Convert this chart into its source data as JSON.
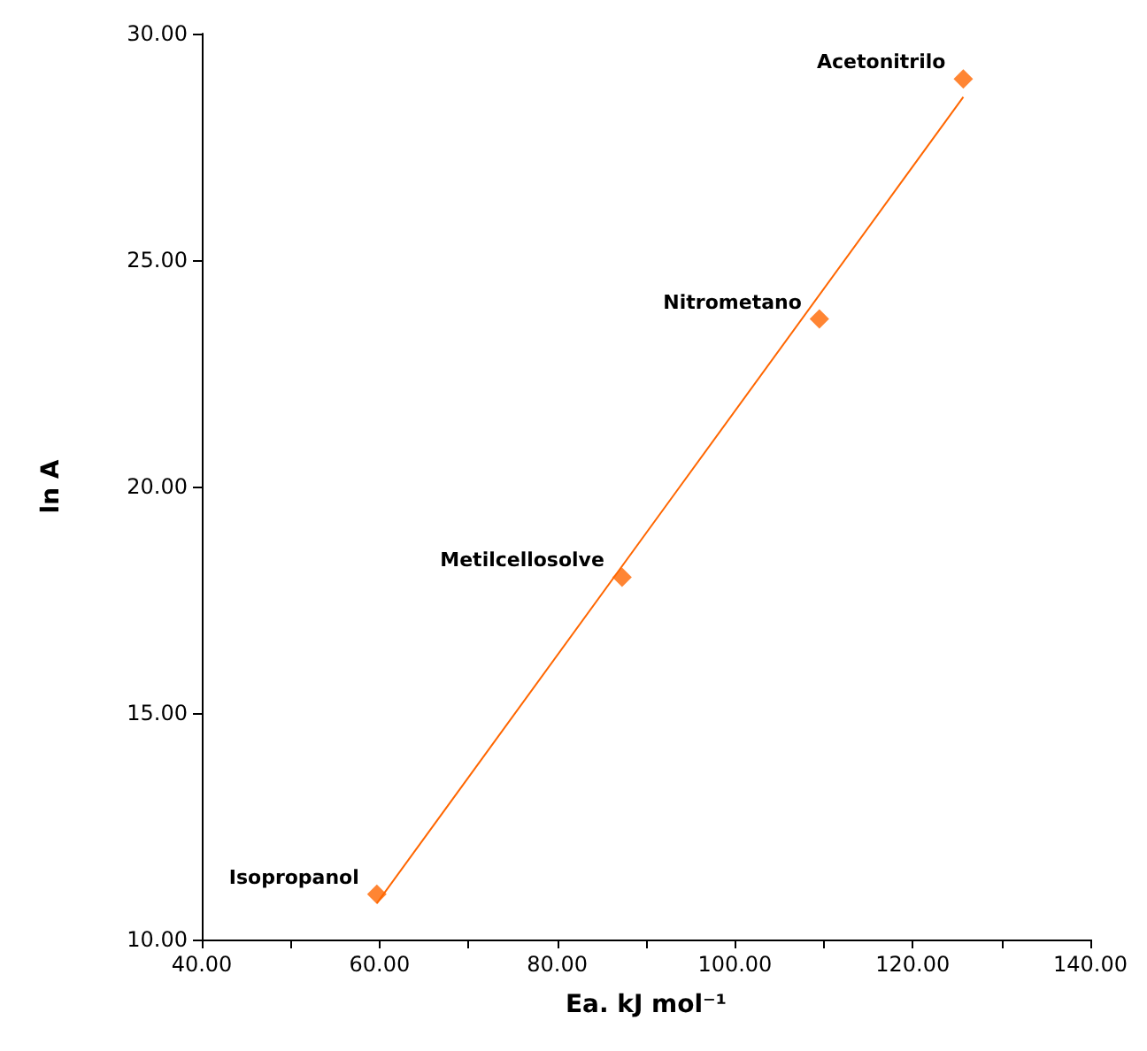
{
  "chart_data": {
    "type": "scatter",
    "xlabel": "Ea. kJ mol⁻¹",
    "ylabel": "ln A",
    "marker": "diamond",
    "grid": false,
    "series": [
      {
        "color": "#ff6600",
        "x": [
          59.7,
          87.3,
          109.5,
          125.7
        ],
        "values": [
          11.0,
          18.0,
          23.7,
          29.0
        ]
      },
      {
        "type": "line",
        "color": "#ff6600",
        "marker": "none",
        "line_style": "solid",
        "x": [
          59.7,
          125.7
        ],
        "values": [
          10.8,
          28.6
        ]
      }
    ],
    "xlim": [
      40,
      140
    ],
    "ylim": [
      10,
      30
    ],
    "xticks": [
      {
        "value": 40,
        "label": "40.00"
      },
      {
        "value": 50,
        "label": null
      },
      {
        "value": 60,
        "label": "60.00"
      },
      {
        "value": 70,
        "label": null
      },
      {
        "value": 80,
        "label": "80.00"
      },
      {
        "value": 90,
        "label": null
      },
      {
        "value": 100,
        "label": "100.00"
      },
      {
        "value": 110,
        "label": null
      },
      {
        "value": 120,
        "label": "120.00"
      },
      {
        "value": 130,
        "label": null
      },
      {
        "value": 140,
        "label": "140.00"
      }
    ],
    "yticks": [
      {
        "value": 10,
        "label": "10.00"
      },
      {
        "value": 15,
        "label": "15.00"
      },
      {
        "value": 20,
        "label": "20.00"
      },
      {
        "value": 25,
        "label": "25.00"
      },
      {
        "value": 30,
        "label": "30.00"
      }
    ],
    "annotations": [
      {
        "text": "Isopropanol",
        "x": 59.7,
        "y": 11.0
      },
      {
        "text": "Metilcellosolve",
        "x": 87.3,
        "y": 18.0
      },
      {
        "text": "Nitrometano",
        "x": 109.5,
        "y": 23.7
      },
      {
        "text": "Acetonitrilo",
        "x": 125.7,
        "y": 29.0
      }
    ]
  }
}
